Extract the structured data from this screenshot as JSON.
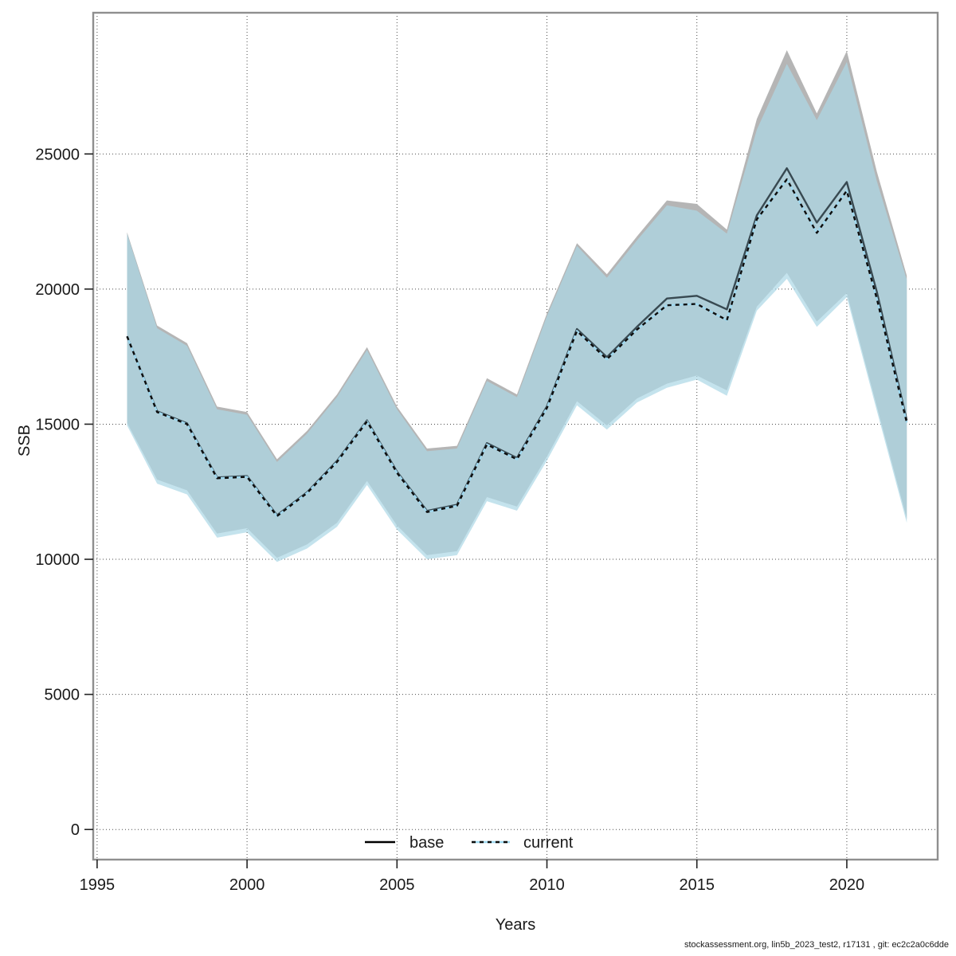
{
  "chart_data": {
    "type": "area",
    "title": "",
    "xlabel": "Years",
    "ylabel": "SSB",
    "x_ticks": [
      1995,
      2000,
      2005,
      2010,
      2015,
      2020
    ],
    "y_ticks": [
      0,
      5000,
      10000,
      15000,
      20000,
      25000
    ],
    "xlim": [
      1994.87,
      2023.03
    ],
    "ylim": [
      -1114,
      30226
    ],
    "grid": true,
    "years": [
      1996,
      1997,
      1998,
      1999,
      2000,
      2001,
      2002,
      2003,
      2004,
      2005,
      2006,
      2007,
      2008,
      2009,
      2010,
      2011,
      2012,
      2013,
      2014,
      2015,
      2016,
      2017,
      2018,
      2019,
      2020,
      2021,
      2022
    ],
    "series": [
      {
        "name": "base",
        "line_style": "solid",
        "values": [
          18250,
          15480,
          15030,
          13030,
          13080,
          11630,
          12480,
          13640,
          15140,
          13240,
          11790,
          12020,
          14300,
          13750,
          15660,
          18520,
          17480,
          18600,
          19650,
          19750,
          19250,
          22730,
          24470,
          22460,
          23960,
          19900,
          15150
        ]
      },
      {
        "name": "current",
        "line_style": "dashed",
        "values": [
          18250,
          15450,
          15000,
          13000,
          13050,
          11600,
          12450,
          13600,
          15100,
          13200,
          11750,
          11980,
          14250,
          13700,
          15600,
          18450,
          17400,
          18500,
          19400,
          19450,
          18850,
          22580,
          24060,
          22080,
          23640,
          19650,
          15060
        ]
      }
    ],
    "bands": [
      {
        "name": "base_ci",
        "color": "#b5b5b5",
        "lower": [
          15050,
          12950,
          12550,
          10950,
          11150,
          10050,
          10550,
          11350,
          12900,
          11250,
          10150,
          10300,
          12300,
          11950,
          13800,
          15850,
          14950,
          15950,
          16500,
          16800,
          16250,
          19350,
          20600,
          18800,
          19850,
          15650,
          11500
        ],
        "upper": [
          22100,
          18650,
          18000,
          15650,
          15450,
          13700,
          14750,
          16100,
          17850,
          15650,
          14100,
          14200,
          16700,
          16100,
          19100,
          21700,
          20550,
          21950,
          23280,
          23150,
          22200,
          26300,
          28840,
          26500,
          28810,
          24350,
          20500
        ]
      },
      {
        "name": "current_ci",
        "color": "rgba(173,216,230,0.72)",
        "lower": [
          14950,
          12800,
          12400,
          10800,
          11000,
          9900,
          10400,
          11200,
          12750,
          11100,
          10000,
          10150,
          12150,
          11800,
          13650,
          15700,
          14800,
          15800,
          16350,
          16650,
          16050,
          19200,
          20380,
          18600,
          19700,
          15500,
          11350
        ],
        "upper": [
          22050,
          18550,
          17900,
          15550,
          15350,
          13600,
          14650,
          16000,
          17750,
          15550,
          14000,
          14100,
          16600,
          16000,
          19000,
          21600,
          20420,
          21800,
          23100,
          22900,
          22050,
          25900,
          28330,
          26250,
          28400,
          24000,
          20350
        ]
      }
    ],
    "legend": {
      "position": "bottom-center-inside",
      "items": [
        {
          "label": "base",
          "sample": "solid-black-line"
        },
        {
          "label": "current",
          "sample": "dashed-black-over-lightblue-line"
        }
      ]
    },
    "footer": "stockassessment.org, lin5b_2023_test2, r17131 , git: ec2c2a0c6dde",
    "colors": {
      "base_band": "#b5b5b5",
      "current_band": "rgba(173,216,230,0.72)",
      "base_line": "#23313a",
      "current_line_dash": "#0d0d0d",
      "current_line_under": "#9fd8ef",
      "gridline": "#4a4a4a",
      "plot_border": "#8f8f8f",
      "tick": "#222222"
    }
  }
}
